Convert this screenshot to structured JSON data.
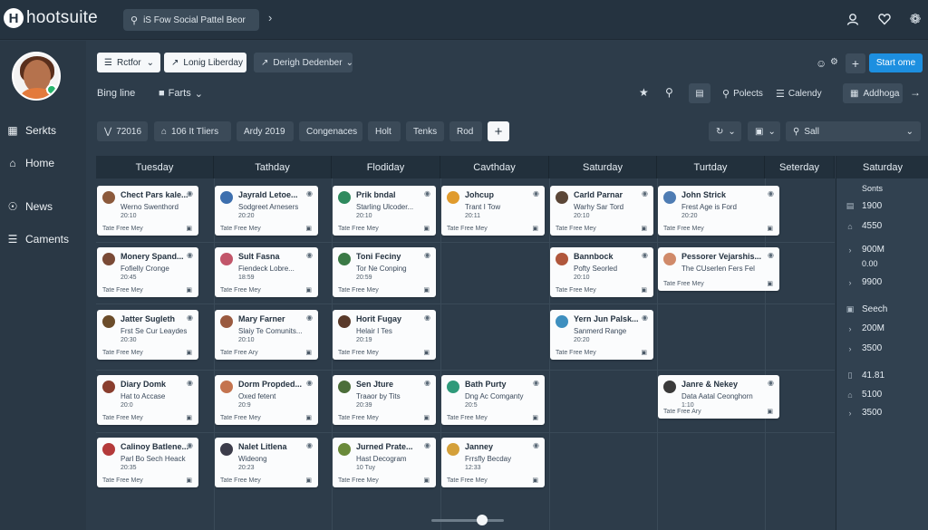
{
  "app": {
    "name": "hootsuite",
    "logo_letter": "H"
  },
  "search": {
    "text": "iS Fow Social Pattel Beor"
  },
  "topbar_icons": [
    "user-icon",
    "heart-icon",
    "gear-icon"
  ],
  "sidebar": {
    "items": [
      {
        "label": "Serkts",
        "icon": "grid-icon"
      },
      {
        "label": "Home",
        "icon": "home-icon"
      },
      {
        "label": "News",
        "icon": "news-icon"
      },
      {
        "label": "Caments",
        "icon": "list-icon"
      }
    ]
  },
  "toolbar": {
    "filter_label": "Rctfor",
    "long_label": "Lonig Liberday",
    "design_label": "Derigh Dedenber",
    "start_label": "Start ome",
    "view_label": "Bing line",
    "parts_label": "Farts",
    "polects_label": "Polects",
    "calendy_label": "Calendy",
    "addhoga_label": "Addhoga"
  },
  "chips": [
    "72016",
    "106 It Tliers",
    "Ardy 2019",
    "Congenaces",
    "Holt",
    "Tenks",
    "Rod"
  ],
  "search_right": {
    "text": "Sall"
  },
  "calendar": {
    "days": [
      "Tuesday",
      "Tathday",
      "Flodiday",
      "Cavthday",
      "Saturday",
      "Turtday",
      "Seterday"
    ],
    "cards": [
      {
        "col": 0,
        "row": 0,
        "name": "Chect Pars kale...",
        "sub": "Werno Swenthord",
        "time": "20:10",
        "meta": "Tate  Free Mey",
        "avatar": "#8c5a3c"
      },
      {
        "col": 1,
        "row": 0,
        "name": "Jayrald Letoe...",
        "sub": "Sodgreet Arnesers",
        "time": "20:20",
        "meta": "Tate  Free Mey",
        "avatar": "#3d6fae"
      },
      {
        "col": 2,
        "row": 0,
        "name": "Prik bndal",
        "sub": "Starling Ulcoder...",
        "time": "20:10",
        "meta": "Tate  Free Mey",
        "avatar": "#2f8a5e"
      },
      {
        "col": 3,
        "row": 0,
        "name": "Johcup",
        "sub": "Trant I Tow",
        "time": "20:11",
        "meta": "Tate  Free Mey",
        "avatar": "#e09b2d"
      },
      {
        "col": 4,
        "row": 0,
        "name": "Carld Parnar",
        "sub": "Warhy Sar Tord",
        "time": "20:10",
        "meta": "Tate  Free Mey",
        "avatar": "#5b4637"
      },
      {
        "col": 5,
        "row": 0,
        "name": "John Strick",
        "sub": "Frest Age is Ford",
        "time": "20:20",
        "meta": "Tate  Free Mey",
        "avatar": "#4e7cb3"
      },
      {
        "col": 0,
        "row": 1,
        "name": "Monery Spand...",
        "sub": "Fofielly Cronge",
        "time": "20:45",
        "meta": "Tate  Free Mey",
        "avatar": "#7a4a36"
      },
      {
        "col": 1,
        "row": 1,
        "name": "Sult Fasna",
        "sub": "Fiendeck Lobre...",
        "time": "18:59",
        "meta": "Tate  Free Mey",
        "avatar": "#c2566a"
      },
      {
        "col": 2,
        "row": 1,
        "name": "Toni Feciny",
        "sub": "Tor Ne Conping",
        "time": "20:59",
        "meta": "Tate  Free Mey",
        "avatar": "#3b7a46"
      },
      {
        "col": 4,
        "row": 1,
        "name": "Bannbock",
        "sub": "Pofty Seorled",
        "time": "20:10",
        "meta": "Tate  Free Mey",
        "avatar": "#b0573c"
      },
      {
        "col": 5,
        "row": 1,
        "name": "Pessorer Vejarshis...",
        "sub": "The CUserlen Fers Fel",
        "time": "",
        "meta": "Tate  Free Mey",
        "avatar": "#d08a6a"
      },
      {
        "col": 0,
        "row": 2,
        "name": "Jatter Sugleth",
        "sub": "Frst Se Cur Leaydes",
        "time": "20:30",
        "meta": "Tate  Free Mey",
        "avatar": "#6b4c2a"
      },
      {
        "col": 1,
        "row": 2,
        "name": "Mary Farner",
        "sub": "Slaiy Te Comunits...",
        "time": "20:10",
        "meta": "Tate  Free Ary",
        "avatar": "#9a5a40"
      },
      {
        "col": 2,
        "row": 2,
        "name": "Horit Fugay",
        "sub": "Helair I Tes",
        "time": "20:19",
        "meta": "Tate  Free Mey",
        "avatar": "#5a3a2a"
      },
      {
        "col": 4,
        "row": 2,
        "name": "Yern Jun Palsk...",
        "sub": "Sanmerd Range",
        "time": "20:20",
        "meta": "Tate  Free Mey",
        "avatar": "#3e8fbf"
      },
      {
        "col": 0,
        "row": 3,
        "name": "Diary Domk",
        "sub": "Hat to Accase",
        "time": "20:0",
        "meta": "Tate  Free Mey",
        "avatar": "#8a3e2e"
      },
      {
        "col": 1,
        "row": 3,
        "name": "Dorm Propded...",
        "sub": "Oxed fetent",
        "time": "20:9",
        "meta": "Tate  Free Mey",
        "avatar": "#c4744f"
      },
      {
        "col": 2,
        "row": 3,
        "name": "Sen Jture",
        "sub": "Traaor by Tits",
        "time": "20:39",
        "meta": "Tate  Free Mey",
        "avatar": "#4c6e3a"
      },
      {
        "col": 3,
        "row": 3,
        "name": "Bath Purty",
        "sub": "Dng Ac Comganty",
        "time": "20:5",
        "meta": "Tate  Free Mey",
        "avatar": "#2f9a7a"
      },
      {
        "col": 5,
        "row": 3,
        "name": "Janre & Nekey",
        "sub": "Data Aatal Ceonghorn",
        "time": "1:10",
        "meta": "Tate  Free Ary",
        "avatar": "#3a3a3a"
      },
      {
        "col": 0,
        "row": 4,
        "name": "Calinoy Batlene...",
        "sub": "Parl Bo Sech Heack",
        "time": "20:35",
        "meta": "Tate  Free Mey",
        "avatar": "#b43a3a"
      },
      {
        "col": 1,
        "row": 4,
        "name": "Nalet Litlena",
        "sub": "Wideong",
        "time": "20:23",
        "meta": "Tate  Free Mey",
        "avatar": "#3c3c4a"
      },
      {
        "col": 2,
        "row": 4,
        "name": "Jurned Prate...",
        "sub": "Hast Decogram",
        "time": "10 Tuy",
        "meta": "Tate  Free Mey",
        "avatar": "#6a8a3a"
      },
      {
        "col": 3,
        "row": 4,
        "name": "Janney",
        "sub": "Frrsfly Becday",
        "time": "12:33",
        "meta": "Tate  Free Mey",
        "avatar": "#d4a03a"
      }
    ]
  },
  "stats": {
    "title": "Saturday",
    "rows": [
      {
        "icon": "",
        "label": "Sonts"
      },
      {
        "icon": "doc-icon",
        "label": "1900"
      },
      {
        "icon": "building-icon",
        "label": "4550"
      },
      {
        "icon": "chevron-icon",
        "label": "900M"
      },
      {
        "icon": "",
        "label": "0.00"
      },
      {
        "icon": "chevron-icon",
        "label": "9900"
      },
      {
        "icon": "box-icon",
        "label": "Seech"
      },
      {
        "icon": "chevron-icon",
        "label": "200M"
      },
      {
        "icon": "chevron-icon",
        "label": "3500"
      },
      {
        "icon": "trash-icon",
        "label": "41.81"
      },
      {
        "icon": "building-icon",
        "label": "5100"
      },
      {
        "icon": "chevron-icon",
        "label": "3500"
      }
    ]
  }
}
